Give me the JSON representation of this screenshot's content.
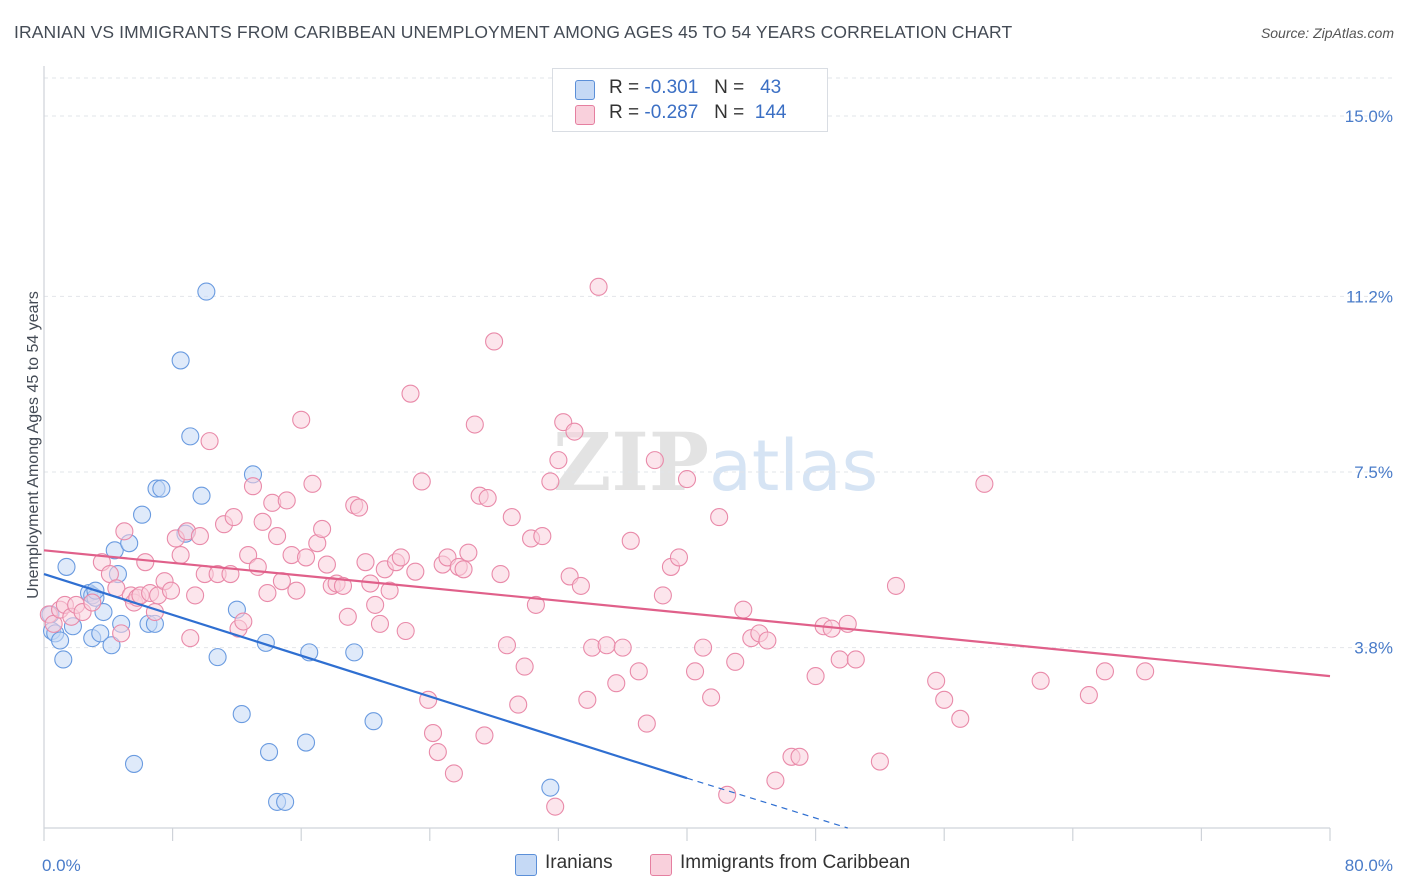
{
  "title": "IRANIAN VS IMMIGRANTS FROM CARIBBEAN UNEMPLOYMENT AMONG AGES 45 TO 54 YEARS CORRELATION CHART",
  "source": "Source: ZipAtlas.com",
  "watermark": "ZIPatlas",
  "legend_top": [
    {
      "r_label": "R =",
      "r_value": "-0.301",
      "n_label": "N =",
      "n_value": "43",
      "color": "#a9c6f0",
      "border": "#5b8fd8"
    },
    {
      "r_label": "R =",
      "r_value": "-0.287",
      "n_label": "N =",
      "n_value": "144",
      "color": "#f7bfd0",
      "border": "#e57fa0"
    }
  ],
  "legend_bottom": [
    {
      "label": "Iranians",
      "color": "#a9c6f0",
      "border": "#5b8fd8"
    },
    {
      "label": "Immigrants from Caribbean",
      "color": "#f7bfd0",
      "border": "#e57fa0"
    }
  ],
  "chart_data": {
    "type": "scatter",
    "title": "IRANIAN VS IMMIGRANTS FROM CARIBBEAN UNEMPLOYMENT AMONG AGES 45 TO 54 YEARS CORRELATION CHART",
    "xlabel": "",
    "ylabel": "Unemployment Among Ages 45 to 54 years",
    "xlim": [
      0,
      80
    ],
    "ylim": [
      0,
      15.8
    ],
    "x_tick_labels": [
      {
        "value": 0,
        "label": "0.0%"
      },
      {
        "value": 80,
        "label": "80.0%"
      }
    ],
    "y_tick_labels": [
      {
        "value": 3.8,
        "label": "3.8%"
      },
      {
        "value": 7.5,
        "label": "7.5%"
      },
      {
        "value": 11.2,
        "label": "11.2%"
      },
      {
        "value": 15.0,
        "label": "15.0%"
      }
    ],
    "grid": "horizontal dashed",
    "series": [
      {
        "name": "Iranians",
        "color": "#6a9be0",
        "fill": "#c5d9f5",
        "trend": {
          "x0": 0,
          "y0": 5.35,
          "x1": 40,
          "y1": 1.05,
          "dash_to_x": 50,
          "dash_to_y": 0
        },
        "points": [
          [
            0.4,
            4.5
          ],
          [
            0.5,
            4.15
          ],
          [
            0.7,
            4.1
          ],
          [
            1.0,
            3.95
          ],
          [
            1.2,
            3.55
          ],
          [
            1.4,
            5.5
          ],
          [
            1.8,
            4.25
          ],
          [
            2.8,
            4.95
          ],
          [
            3.0,
            4.9
          ],
          [
            3.0,
            4.0
          ],
          [
            3.2,
            4.85
          ],
          [
            3.2,
            5.0
          ],
          [
            3.5,
            4.1
          ],
          [
            3.7,
            4.55
          ],
          [
            4.2,
            3.85
          ],
          [
            4.4,
            5.85
          ],
          [
            4.6,
            5.35
          ],
          [
            4.8,
            4.3
          ],
          [
            5.3,
            6.0
          ],
          [
            5.6,
            1.35
          ],
          [
            6.1,
            6.6
          ],
          [
            6.5,
            4.3
          ],
          [
            6.9,
            4.3
          ],
          [
            7.0,
            7.15
          ],
          [
            7.3,
            7.15
          ],
          [
            8.5,
            9.85
          ],
          [
            8.8,
            6.2
          ],
          [
            9.1,
            8.25
          ],
          [
            9.8,
            7.0
          ],
          [
            10.1,
            11.3
          ],
          [
            10.8,
            3.6
          ],
          [
            12.3,
            2.4
          ],
          [
            13.0,
            7.45
          ],
          [
            13.8,
            3.9
          ],
          [
            14.0,
            1.6
          ],
          [
            14.5,
            0.55
          ],
          [
            15.0,
            0.55
          ],
          [
            16.3,
            1.8
          ],
          [
            16.5,
            3.7
          ],
          [
            19.3,
            3.7
          ],
          [
            20.5,
            2.25
          ],
          [
            31.5,
            0.85
          ],
          [
            12.0,
            4.6
          ]
        ]
      },
      {
        "name": "Immigrants from Caribbean",
        "color": "#e98aa9",
        "fill": "#f9d0dc",
        "trend": {
          "x0": 0,
          "y0": 5.85,
          "x1": 80,
          "y1": 3.2
        },
        "points": [
          [
            0.3,
            4.5
          ],
          [
            0.6,
            4.3
          ],
          [
            1.0,
            4.6
          ],
          [
            1.3,
            4.7
          ],
          [
            1.7,
            4.45
          ],
          [
            2.0,
            4.7
          ],
          [
            2.4,
            4.55
          ],
          [
            3.0,
            4.75
          ],
          [
            3.6,
            5.6
          ],
          [
            4.1,
            5.35
          ],
          [
            4.5,
            5.05
          ],
          [
            4.8,
            4.1
          ],
          [
            5.0,
            6.25
          ],
          [
            5.4,
            4.9
          ],
          [
            5.6,
            4.75
          ],
          [
            5.8,
            4.85
          ],
          [
            6.0,
            4.9
          ],
          [
            6.3,
            5.6
          ],
          [
            6.6,
            4.95
          ],
          [
            6.9,
            4.55
          ],
          [
            7.1,
            4.9
          ],
          [
            7.5,
            5.2
          ],
          [
            7.9,
            5.0
          ],
          [
            8.2,
            6.1
          ],
          [
            8.5,
            5.75
          ],
          [
            8.9,
            6.25
          ],
          [
            9.1,
            4.0
          ],
          [
            9.4,
            4.9
          ],
          [
            9.7,
            6.15
          ],
          [
            10.0,
            5.35
          ],
          [
            10.3,
            8.15
          ],
          [
            10.8,
            5.35
          ],
          [
            11.2,
            6.4
          ],
          [
            11.6,
            5.35
          ],
          [
            11.8,
            6.55
          ],
          [
            12.1,
            4.2
          ],
          [
            12.4,
            4.35
          ],
          [
            12.7,
            5.75
          ],
          [
            13.0,
            7.2
          ],
          [
            13.3,
            5.5
          ],
          [
            13.6,
            6.45
          ],
          [
            13.9,
            4.95
          ],
          [
            14.2,
            6.85
          ],
          [
            14.5,
            6.15
          ],
          [
            14.8,
            5.2
          ],
          [
            15.1,
            6.9
          ],
          [
            15.4,
            5.75
          ],
          [
            15.7,
            5.0
          ],
          [
            16.0,
            8.6
          ],
          [
            16.3,
            5.7
          ],
          [
            16.7,
            7.25
          ],
          [
            17.0,
            6.0
          ],
          [
            17.3,
            6.3
          ],
          [
            17.6,
            5.55
          ],
          [
            17.9,
            5.1
          ],
          [
            18.2,
            5.15
          ],
          [
            18.6,
            5.1
          ],
          [
            18.9,
            4.45
          ],
          [
            19.3,
            6.8
          ],
          [
            19.6,
            6.75
          ],
          [
            20.0,
            5.6
          ],
          [
            20.3,
            5.15
          ],
          [
            20.6,
            4.7
          ],
          [
            20.9,
            4.3
          ],
          [
            21.2,
            5.45
          ],
          [
            21.5,
            5.0
          ],
          [
            21.9,
            5.6
          ],
          [
            22.2,
            5.7
          ],
          [
            22.5,
            4.15
          ],
          [
            22.8,
            9.15
          ],
          [
            23.1,
            5.4
          ],
          [
            23.5,
            7.3
          ],
          [
            23.9,
            2.7
          ],
          [
            24.2,
            2.0
          ],
          [
            24.5,
            1.6
          ],
          [
            24.8,
            5.55
          ],
          [
            25.1,
            5.7
          ],
          [
            25.5,
            1.15
          ],
          [
            25.8,
            5.5
          ],
          [
            26.1,
            5.45
          ],
          [
            26.4,
            5.8
          ],
          [
            26.8,
            8.5
          ],
          [
            27.1,
            7.0
          ],
          [
            27.4,
            1.95
          ],
          [
            27.6,
            6.95
          ],
          [
            28.0,
            10.25
          ],
          [
            28.4,
            5.35
          ],
          [
            28.8,
            3.85
          ],
          [
            29.1,
            6.55
          ],
          [
            29.5,
            2.6
          ],
          [
            29.9,
            3.4
          ],
          [
            30.3,
            6.1
          ],
          [
            30.6,
            4.7
          ],
          [
            31.0,
            6.15
          ],
          [
            31.5,
            7.3
          ],
          [
            32.0,
            7.75
          ],
          [
            32.3,
            8.55
          ],
          [
            32.7,
            5.3
          ],
          [
            33.0,
            8.35
          ],
          [
            33.4,
            5.1
          ],
          [
            33.8,
            2.7
          ],
          [
            34.1,
            3.8
          ],
          [
            34.5,
            11.4
          ],
          [
            35.0,
            3.85
          ],
          [
            35.6,
            3.05
          ],
          [
            36.0,
            3.8
          ],
          [
            36.5,
            6.05
          ],
          [
            37.0,
            3.3
          ],
          [
            37.5,
            2.2
          ],
          [
            38.0,
            7.75
          ],
          [
            38.5,
            4.9
          ],
          [
            39.0,
            5.5
          ],
          [
            39.5,
            5.7
          ],
          [
            40.0,
            7.35
          ],
          [
            40.5,
            3.3
          ],
          [
            41.0,
            3.8
          ],
          [
            41.5,
            2.75
          ],
          [
            42.0,
            6.55
          ],
          [
            42.5,
            0.7
          ],
          [
            43.0,
            3.5
          ],
          [
            43.5,
            4.6
          ],
          [
            44.0,
            4.0
          ],
          [
            44.5,
            4.1
          ],
          [
            45.0,
            3.95
          ],
          [
            45.5,
            1.0
          ],
          [
            46.5,
            1.5
          ],
          [
            47.0,
            1.5
          ],
          [
            48.0,
            3.2
          ],
          [
            48.5,
            4.25
          ],
          [
            49.0,
            4.2
          ],
          [
            49.5,
            3.55
          ],
          [
            50.0,
            4.3
          ],
          [
            50.5,
            3.55
          ],
          [
            52.0,
            1.4
          ],
          [
            53.0,
            5.1
          ],
          [
            55.5,
            3.1
          ],
          [
            56.0,
            2.7
          ],
          [
            57.0,
            2.3
          ],
          [
            58.5,
            7.25
          ],
          [
            62.0,
            3.1
          ],
          [
            65.0,
            2.8
          ],
          [
            66.0,
            3.3
          ],
          [
            68.5,
            3.3
          ],
          [
            31.8,
            0.45
          ]
        ]
      }
    ]
  }
}
